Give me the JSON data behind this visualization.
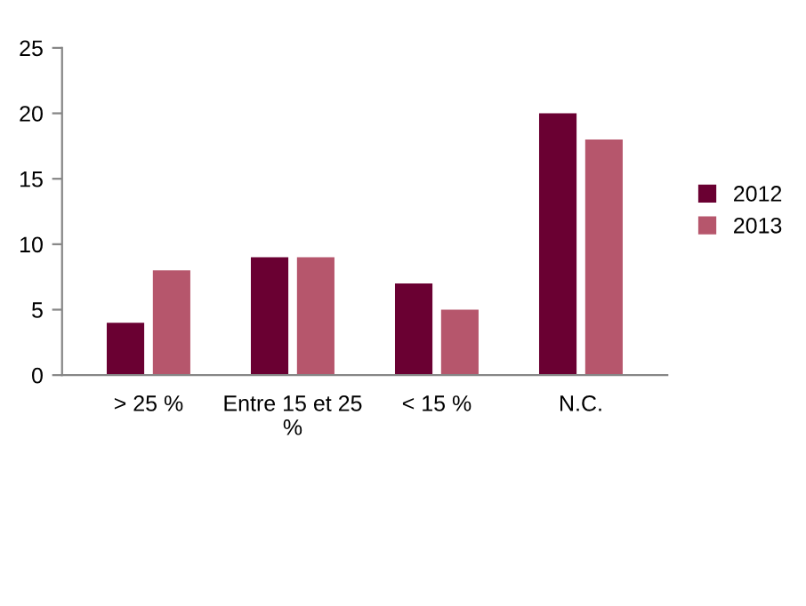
{
  "chart_data": {
    "type": "bar",
    "categories": [
      "> 25 %",
      "Entre 15 et 25 %",
      "< 15 %",
      "N.C."
    ],
    "series": [
      {
        "name": "2012",
        "color": "#6a0032",
        "values": [
          4,
          9,
          7,
          20
        ]
      },
      {
        "name": "2013",
        "color": "#b6566c",
        "values": [
          8,
          9,
          5,
          18
        ]
      }
    ],
    "ylim": [
      0,
      25
    ],
    "yticks": [
      0,
      5,
      10,
      15,
      20,
      25
    ],
    "grid": false,
    "legend": "right"
  }
}
